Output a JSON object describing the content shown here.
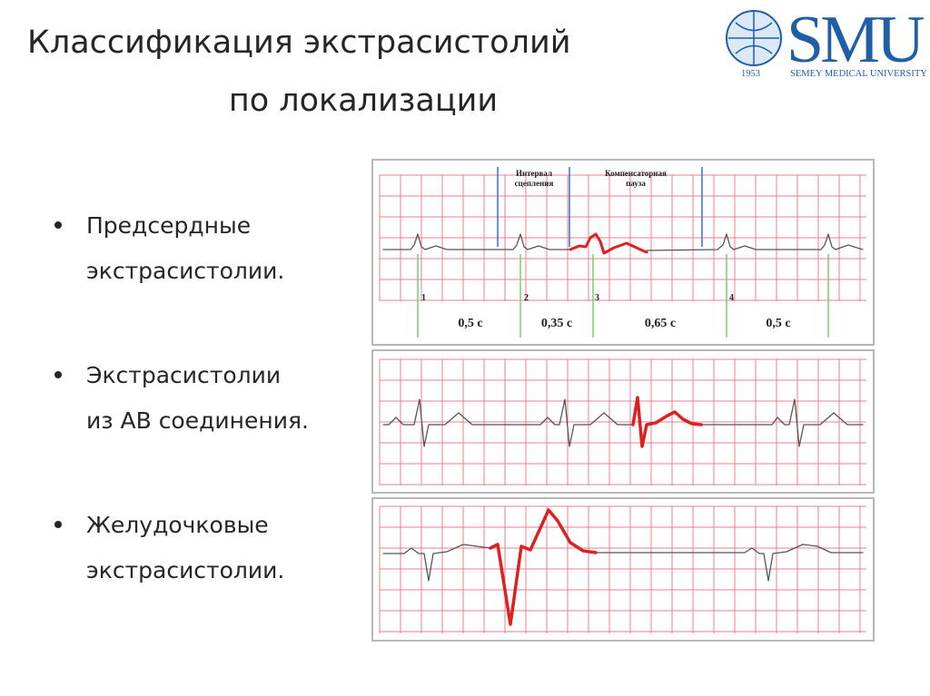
{
  "header": {
    "title_line1": "Классификация экстрасистолий",
    "title_line2": "по локализации"
  },
  "logo": {
    "name": "SMU",
    "subtitle": "SEMEY MEDICAL UNIVERSITY",
    "year": "1953"
  },
  "bullets": [
    {
      "lines": [
        "Предсердные",
        "экстрасистолии."
      ]
    },
    {
      "lines": [
        "Экстрасистолии",
        "из АВ соединения."
      ]
    },
    {
      "lines": [
        "Желудочковые",
        "экстрасистолии."
      ]
    }
  ],
  "ecg": {
    "coupling_label": [
      "Интервал",
      "сцепления"
    ],
    "pause_label": [
      "Компенсаторная",
      "пауза"
    ],
    "beats": [
      "1",
      "2",
      "3",
      "4"
    ],
    "intervals": [
      "0,5 с",
      "0,35 с",
      "0,65 с",
      "0,5 с"
    ]
  }
}
